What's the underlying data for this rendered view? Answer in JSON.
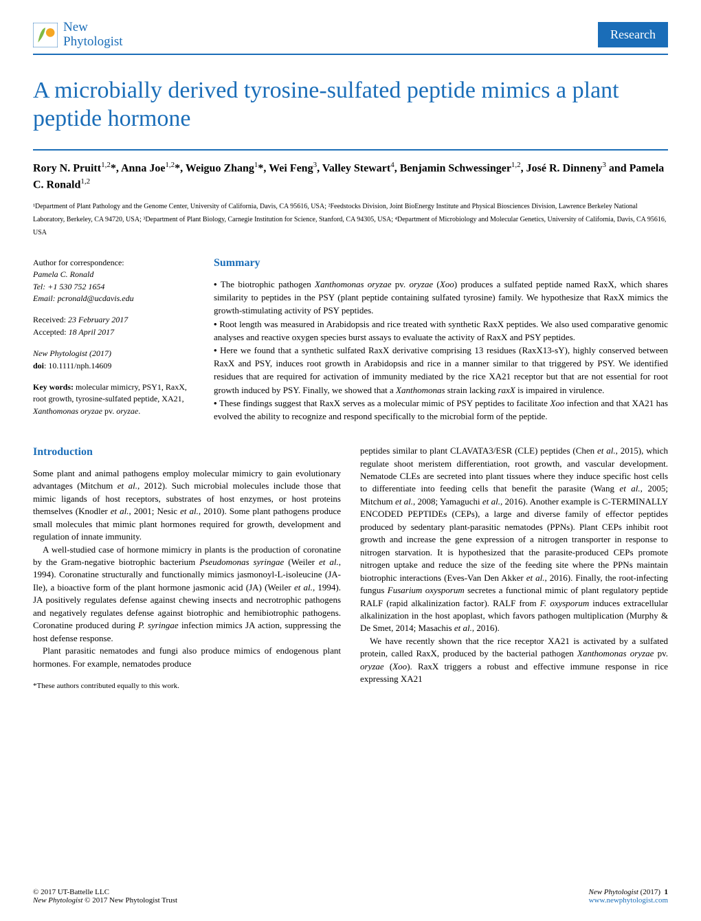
{
  "header": {
    "journal_line1": "New",
    "journal_line2": "Phytologist",
    "badge": "Research",
    "accent_color": "#1a6db8",
    "logo_colors": {
      "leaf": "#7fb943",
      "circle": "#f5a623"
    }
  },
  "title": "A microbially derived tyrosine-sulfated peptide mimics a plant peptide hormone",
  "authors_html": "Rory N. Pruitt<sup>1,2</sup>*, Anna Joe<sup>1,2</sup>*, Weiguo Zhang<sup>1</sup>*, Wei Feng<sup>3</sup>, Valley Stewart<sup>4</sup>, Benjamin Schwessinger<sup>1,2</sup>, José R. Dinneny<sup>3</sup> and Pamela C. Ronald<sup>1,2</sup>",
  "affiliations": "¹Department of Plant Pathology and the Genome Center, University of California, Davis, CA 95616, USA; ²Feedstocks Division, Joint BioEnergy Institute and Physical Biosciences Division, Lawrence Berkeley National Laboratory, Berkeley, CA 94720, USA; ³Department of Plant Biology, Carnegie Institution for Science, Stanford, CA 94305, USA; ⁴Department of Microbiology and Molecular Genetics, University of California, Davis, CA 95616, USA",
  "sidebar": {
    "correspondence_label": "Author for correspondence:",
    "correspondence_name": "Pamela C. Ronald",
    "tel": "Tel: +1 530 752 1654",
    "email": "Email: pcronald@ucdavis.edu",
    "received": "Received: 23 February 2017",
    "accepted": "Accepted: 18 April 2017",
    "citation": "New Phytologist (2017)",
    "doi_label": "doi",
    "doi": ": 10.1111/nph.14609",
    "keywords_label": "Key words:",
    "keywords": " molecular mimicry, PSY1, RaxX, root growth, tyrosine-sulfated peptide, XA21, Xanthomonas oryzae pv. oryzae."
  },
  "summary": {
    "heading": "Summary",
    "bullets": [
      "The biotrophic pathogen <span class=\"ital\">Xanthomonas oryzae</span> pv. <span class=\"ital\">oryzae</span> (<span class=\"ital\">Xoo</span>) produces a sulfated peptide named RaxX, which shares similarity to peptides in the PSY (plant peptide containing sulfated tyrosine) family. We hypothesize that RaxX mimics the growth-stimulating activity of PSY peptides.",
      "Root length was measured in Arabidopsis and rice treated with synthetic RaxX peptides. We also used comparative genomic analyses and reactive oxygen species burst assays to evaluate the activity of RaxX and PSY peptides.",
      "Here we found that a synthetic sulfated RaxX derivative comprising 13 residues (RaxX13-sY), highly conserved between RaxX and PSY, induces root growth in Arabidopsis and rice in a manner similar to that triggered by PSY. We identified residues that are required for activation of immunity mediated by the rice XA21 receptor but that are not essential for root growth induced by PSY. Finally, we showed that a <span class=\"ital\">Xanthomonas</span> strain lacking <span class=\"ital\">raxX</span> is impaired in virulence.",
      "These findings suggest that RaxX serves as a molecular mimic of PSY peptides to facilitate <span class=\"ital\">Xoo</span> infection and that XA21 has evolved the ability to recognize and respond specifically to the microbial form of the peptide."
    ]
  },
  "intro": {
    "heading": "Introduction",
    "left_paragraphs": [
      "Some plant and animal pathogens employ molecular mimicry to gain evolutionary advantages (Mitchum <span class=\"ital\">et al.</span>, 2012). Such microbial molecules include those that mimic ligands of host receptors, substrates of host enzymes, or host proteins themselves (Knodler <span class=\"ital\">et al.</span>, 2001; Nesic <span class=\"ital\">et al.</span>, 2010). Some plant pathogens produce small molecules that mimic plant hormones required for growth, development and regulation of innate immunity.",
      "A well-studied case of hormone mimicry in plants is the production of coronatine by the Gram-negative biotrophic bacterium <span class=\"ital\">Pseudomonas syringae</span> (Weiler <span class=\"ital\">et al.</span>, 1994). Coronatine structurally and functionally mimics jasmonoyl-L-isoleucine (JA-Ile), a bioactive form of the plant hormone jasmonic acid (JA) (Weiler <span class=\"ital\">et al.</span>, 1994). JA positively regulates defense against chewing insects and necrotrophic pathogens and negatively regulates defense against biotrophic and hemibiotrophic pathogens. Coronatine produced during <span class=\"ital\">P. syringae</span> infection mimics JA action, suppressing the host defense response.",
      "Plant parasitic nematodes and fungi also produce mimics of endogenous plant hormones. For example, nematodes produce"
    ],
    "right_paragraphs": [
      "peptides similar to plant CLAVATA3/ESR (CLE) peptides (Chen <span class=\"ital\">et al.</span>, 2015), which regulate shoot meristem differentiation, root growth, and vascular development. Nematode CLEs are secreted into plant tissues where they induce specific host cells to differentiate into feeding cells that benefit the parasite (Wang <span class=\"ital\">et al.</span>, 2005; Mitchum <span class=\"ital\">et al.</span>, 2008; Yamaguchi <span class=\"ital\">et al.</span>, 2016). Another example is C-TERMINALLY ENCODED PEPTIDEs (CEPs), a large and diverse family of effector peptides produced by sedentary plant-parasitic nematodes (PPNs). Plant CEPs inhibit root growth and increase the gene expression of a nitrogen transporter in response to nitrogen starvation. It is hypothesized that the parasite-produced CEPs promote nitrogen uptake and reduce the size of the feeding site where the PPNs maintain biotrophic interactions (Eves-Van Den Akker <span class=\"ital\">et al.</span>, 2016). Finally, the root-infecting fungus <span class=\"ital\">Fusarium oxysporum</span> secretes a functional mimic of plant regulatory peptide RALF (rapid alkalinization factor). RALF from <span class=\"ital\">F. oxysporum</span> induces extracellular alkalinization in the host apoplast, which favors pathogen multiplication (Murphy & De Smet, 2014; Masachis <span class=\"ital\">et al.</span>, 2016).",
      "We have recently shown that the rice receptor XA21 is activated by a sulfated protein, called RaxX, produced by the bacterial pathogen <span class=\"ital\">Xanthomonas oryzae</span> pv. <span class=\"ital\">oryzae</span> (<span class=\"ital\">Xoo</span>). RaxX triggers a robust and effective immune response in rice expressing XA21"
    ]
  },
  "footnote": "*These authors contributed equally to this work.",
  "footer": {
    "left_line1": "© 2017 UT-Battelle LLC",
    "left_line2": "New Phytologist © 2017 New Phytologist Trust",
    "right_line1": "New Phytologist (2017)",
    "right_page": "1",
    "right_url": "www.newphytologist.com"
  }
}
